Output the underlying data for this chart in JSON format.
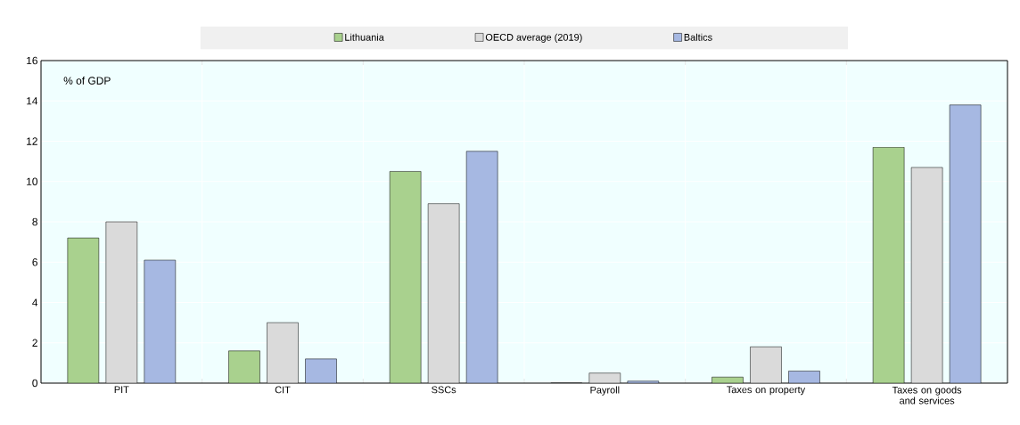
{
  "chart_data": {
    "type": "bar",
    "ylabel": "% of GDP",
    "categories": [
      "PIT",
      "CIT",
      "SSCs",
      "Payroll",
      "Taxes on property",
      "Taxes on goods and services"
    ],
    "series": [
      {
        "name": "Lithuania",
        "color": "#a9d18e",
        "values": [
          7.2,
          1.6,
          10.5,
          0,
          0.3,
          11.7
        ]
      },
      {
        "name": "OECD average (2019)",
        "color": "#dadada",
        "values": [
          8.0,
          3.0,
          8.9,
          0.5,
          1.8,
          10.7
        ]
      },
      {
        "name": "Baltics",
        "color": "#a6b8e2",
        "values": [
          6.1,
          1.2,
          11.5,
          0.1,
          0.6,
          13.8
        ]
      }
    ],
    "ylim": [
      0,
      16
    ],
    "yticks": [
      0,
      2,
      4,
      6,
      8,
      10,
      12,
      14,
      16
    ],
    "grid": true,
    "legend": "top"
  }
}
